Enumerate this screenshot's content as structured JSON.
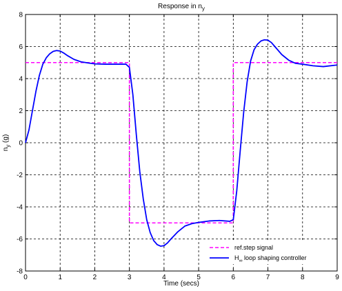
{
  "chart_data": {
    "type": "line",
    "title": "Response in n",
    "title_sub": "y",
    "xlabel": "Time (secs)",
    "ylabel": "n",
    "ylabel_sub": "y",
    "ylabel_suffix": " (g)",
    "xlim": [
      0,
      9
    ],
    "ylim": [
      -8,
      8
    ],
    "xticks": [
      0,
      1,
      2,
      3,
      4,
      5,
      6,
      7,
      8,
      9
    ],
    "yticks": [
      -8,
      -6,
      -4,
      -2,
      0,
      2,
      4,
      6,
      8
    ],
    "grid": true,
    "legend_position": "bottom-right",
    "series": [
      {
        "name": "ref.step signal",
        "color": "#ff00ff",
        "style": "dashed",
        "x": [
          0,
          3,
          3,
          6,
          6,
          9
        ],
        "y": [
          5,
          5,
          -5,
          -5,
          5,
          5
        ]
      },
      {
        "name_main": "H",
        "name_sub": "∞",
        "name_rest": " loop shaping controller",
        "color": "#0000ff",
        "style": "solid",
        "x": [
          0,
          0.1,
          0.2,
          0.3,
          0.4,
          0.5,
          0.6,
          0.7,
          0.8,
          0.9,
          1.0,
          1.1,
          1.2,
          1.4,
          1.6,
          1.8,
          2.0,
          2.3,
          2.6,
          2.9,
          3.0,
          3.1,
          3.2,
          3.3,
          3.4,
          3.5,
          3.6,
          3.7,
          3.8,
          3.9,
          4.0,
          4.1,
          4.2,
          4.4,
          4.6,
          4.8,
          5.0,
          5.3,
          5.6,
          5.9,
          6.0,
          6.1,
          6.2,
          6.3,
          6.4,
          6.5,
          6.6,
          6.7,
          6.8,
          6.9,
          7.0,
          7.1,
          7.2,
          7.4,
          7.6,
          7.8,
          8.0,
          8.3,
          8.6,
          9.0
        ],
        "y": [
          0,
          0.8,
          2.0,
          3.2,
          4.2,
          4.9,
          5.3,
          5.55,
          5.7,
          5.75,
          5.72,
          5.6,
          5.45,
          5.2,
          5.05,
          4.98,
          4.92,
          4.9,
          4.9,
          4.9,
          4.7,
          3.0,
          0.5,
          -1.8,
          -3.5,
          -4.8,
          -5.6,
          -6.1,
          -6.35,
          -6.45,
          -6.42,
          -6.25,
          -6.0,
          -5.55,
          -5.2,
          -5.05,
          -4.97,
          -4.88,
          -4.85,
          -4.9,
          -4.8,
          -3.0,
          -0.5,
          1.9,
          3.8,
          5.1,
          5.8,
          6.15,
          6.35,
          6.42,
          6.4,
          6.25,
          6.0,
          5.5,
          5.15,
          4.95,
          4.9,
          4.8,
          4.75,
          4.85
        ]
      }
    ]
  }
}
